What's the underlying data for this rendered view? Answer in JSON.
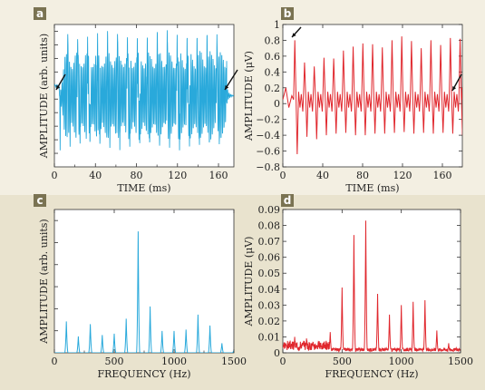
{
  "colors": {
    "background_outer": "#f3efe2",
    "background_lower_band": "#e9e3ce",
    "panel_bg": "#ffffff",
    "badge_bg": "#7a7352",
    "blue": "#29a9db",
    "red": "#e0272d",
    "arrow": "#111111"
  },
  "chart_data": [
    {
      "panel": "a",
      "type": "line",
      "xlabel": "TIME (ms)",
      "ylabel": "AMPLITUDE (arb. units)",
      "xlim": [
        0,
        175
      ],
      "ylim": [
        -1.1,
        1.1
      ],
      "x_ticks": [
        0,
        40,
        80,
        120,
        160
      ],
      "x_minor_ticks": [
        20,
        60,
        100,
        140
      ],
      "y_ticks_unlabeled": 10,
      "signal": {
        "start": 5,
        "end": 168,
        "period": 9.7,
        "first_peak": 13,
        "peak_max": 1.0,
        "trough_min": -0.65,
        "body_band": [
          0.54,
          -0.57
        ],
        "rest_level": 0.15,
        "arrows_at": [
          3,
          165
        ]
      }
    },
    {
      "panel": "b",
      "type": "line",
      "xlabel": "TIME (ms)",
      "ylabel": "AMPLITUDE (μV)",
      "xlim": [
        0,
        180
      ],
      "ylim": [
        -0.8,
        1.0
      ],
      "x_ticks": [
        0,
        40,
        80,
        120,
        160
      ],
      "y_ticks": [
        -0.8,
        -0.6,
        -0.4,
        -0.2,
        0,
        0.2,
        0.4,
        0.6,
        0.8,
        1.0
      ],
      "y_tick_labels": [
        "−0.8",
        "−0.6",
        "−0.4",
        "−0.2",
        "0",
        "0.2",
        "0.4",
        "0.6",
        "0.8",
        "1"
      ],
      "signal": {
        "first_peak_time": 12,
        "period": 9.75,
        "peak_values": [
          0.8,
          0.52,
          0.47,
          0.58,
          0.57,
          0.67,
          0.72,
          0.76,
          0.75,
          0.71,
          0.8,
          0.85,
          0.79,
          0.7,
          0.8,
          0.74,
          0.83,
          0.82
        ],
        "trough_values": [
          -0.64,
          -0.42,
          -0.45,
          -0.4,
          -0.38,
          -0.37,
          -0.4,
          -0.4,
          -0.38,
          -0.38,
          -0.37,
          -0.36,
          -0.38,
          -0.37,
          -0.38,
          -0.37,
          -0.38,
          -0.4
        ],
        "tail_value": 0.2,
        "arrows_at": [
          12,
          175
        ]
      }
    },
    {
      "panel": "c",
      "type": "line",
      "xlabel": "FREQUENCY (Hz)",
      "ylabel": "AMPLITUDE (arb. units)",
      "xlim": [
        0,
        1500
      ],
      "ylim": [
        0,
        1.05
      ],
      "x_ticks": [
        0,
        500,
        1000,
        1500
      ],
      "x_minor_ticks": [
        250,
        750,
        1250
      ],
      "y_ticks_unlabeled": 6,
      "peaks": [
        {
          "f": 100,
          "a": 0.23
        },
        {
          "f": 200,
          "a": 0.12
        },
        {
          "f": 300,
          "a": 0.21
        },
        {
          "f": 400,
          "a": 0.13
        },
        {
          "f": 500,
          "a": 0.14
        },
        {
          "f": 600,
          "a": 0.25
        },
        {
          "f": 700,
          "a": 0.89
        },
        {
          "f": 800,
          "a": 0.34
        },
        {
          "f": 900,
          "a": 0.16
        },
        {
          "f": 1000,
          "a": 0.16
        },
        {
          "f": 1100,
          "a": 0.17
        },
        {
          "f": 1200,
          "a": 0.28
        },
        {
          "f": 1300,
          "a": 0.2
        },
        {
          "f": 1400,
          "a": 0.07
        },
        {
          "f": 1500,
          "a": 0.02
        }
      ]
    },
    {
      "panel": "d",
      "type": "line",
      "xlabel": "FREQUENCY (Hz)",
      "ylabel": "AMPLITUDE (μV)",
      "xlim": [
        0,
        1500
      ],
      "ylim": [
        0,
        0.09
      ],
      "x_ticks": [
        0,
        500,
        1000,
        1500
      ],
      "y_ticks": [
        0,
        0.01,
        0.02,
        0.03,
        0.04,
        0.05,
        0.06,
        0.07,
        0.08,
        0.09
      ],
      "y_tick_labels": [
        "0",
        "0.01",
        "0.02",
        "0.03",
        "0.04",
        "0.05",
        "0.06",
        "0.07",
        "0.08",
        "0.09"
      ],
      "peaks": [
        {
          "f": 100,
          "a": 0.01
        },
        {
          "f": 200,
          "a": 0.009
        },
        {
          "f": 300,
          "a": 0.007
        },
        {
          "f": 400,
          "a": 0.013
        },
        {
          "f": 500,
          "a": 0.041
        },
        {
          "f": 600,
          "a": 0.074
        },
        {
          "f": 700,
          "a": 0.083
        },
        {
          "f": 800,
          "a": 0.037
        },
        {
          "f": 900,
          "a": 0.024
        },
        {
          "f": 1000,
          "a": 0.03
        },
        {
          "f": 1100,
          "a": 0.032
        },
        {
          "f": 1200,
          "a": 0.033
        },
        {
          "f": 1300,
          "a": 0.014
        },
        {
          "f": 1400,
          "a": 0.006
        }
      ],
      "noise_floor": 0.002
    }
  ]
}
